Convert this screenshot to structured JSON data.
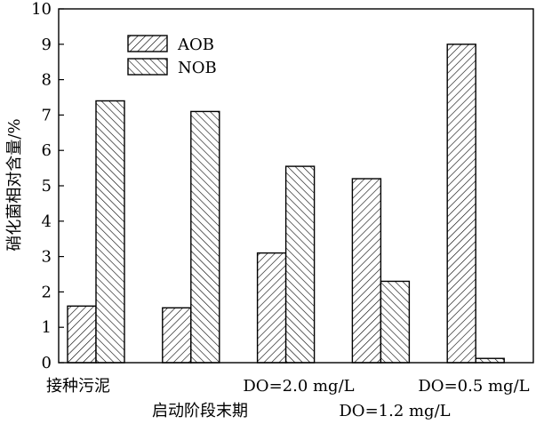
{
  "chart_data": {
    "type": "bar",
    "categories": [
      "接种污泥",
      "启动阶段末期",
      "DO=2.0 mg/L",
      "DO=1.2 mg/L",
      "DO=0.5 mg/L"
    ],
    "series": [
      {
        "name": "AOB",
        "values": [
          1.6,
          1.55,
          3.1,
          5.2,
          9.0
        ],
        "pattern": "hatch-forward"
      },
      {
        "name": "NOB",
        "values": [
          7.4,
          7.1,
          5.55,
          2.3,
          0.12
        ],
        "pattern": "hatch-backward"
      }
    ],
    "ylabel": "硝化菌相对含量/%",
    "ylim": [
      0,
      10
    ],
    "yticks": [
      "0",
      "1",
      "2",
      "3",
      "4",
      "5",
      "6",
      "7",
      "8",
      "9",
      "10"
    ],
    "legend_position": "top-left",
    "grid": false,
    "colors": {
      "stroke": "#000000",
      "fill": "#ffffff"
    }
  }
}
